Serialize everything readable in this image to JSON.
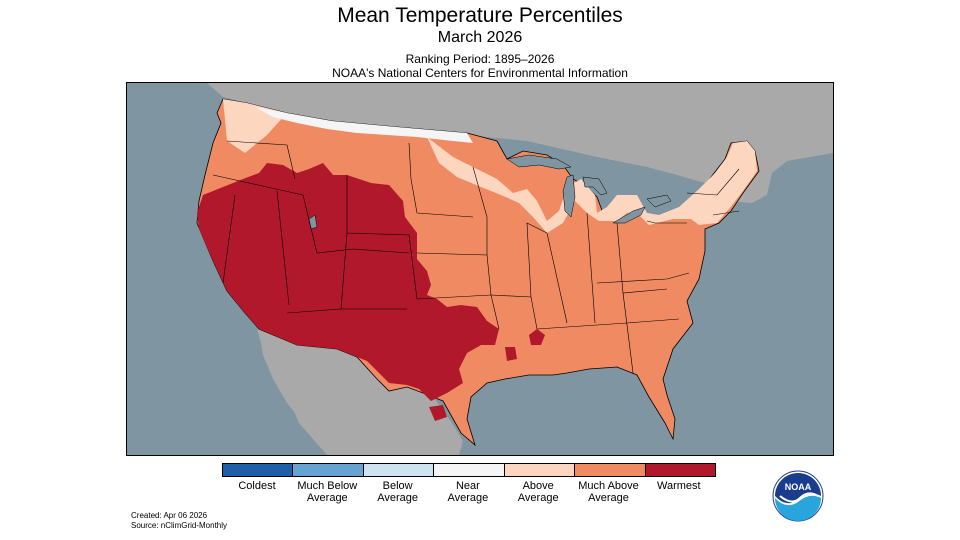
{
  "header": {
    "title": "Mean Temperature Percentiles",
    "subtitle": "March 2026",
    "ranking_period": "Ranking Period: 1895–2026",
    "source_line": "NOAA's National Centers for Environmental Information"
  },
  "map": {
    "ocean_color": "#7f95a1",
    "land_outside_color": "#a9a9a9",
    "lake_color": "#7f95a1",
    "regions": [
      {
        "name": "warmest",
        "category": "Warmest"
      },
      {
        "name": "much-above-average",
        "category": "Much Above Average"
      },
      {
        "name": "above-average",
        "category": "Above Average"
      },
      {
        "name": "near-average",
        "category": "Near Average"
      }
    ]
  },
  "legend": {
    "items": [
      {
        "line1": "Coldest",
        "line2": "",
        "color": "#1f5fa8"
      },
      {
        "line1": "Much Below",
        "line2": "Average",
        "color": "#66a3d2"
      },
      {
        "line1": "Below",
        "line2": "Average",
        "color": "#cde3ef"
      },
      {
        "line1": "Near",
        "line2": "Average",
        "color": "#f5f5f5"
      },
      {
        "line1": "Above",
        "line2": "Average",
        "color": "#fdd6c0"
      },
      {
        "line1": "Much Above",
        "line2": "Average",
        "color": "#ef8a62"
      },
      {
        "line1": "Warmest",
        "line2": "",
        "color": "#b2182b"
      }
    ]
  },
  "footer": {
    "created": "Created: Apr 06 2026",
    "source": "Source: nClimGrid-Monthly"
  },
  "logo": {
    "text": "NOAA",
    "color_top": "#1a3c8f",
    "color_bottom": "#2aa4dc"
  }
}
